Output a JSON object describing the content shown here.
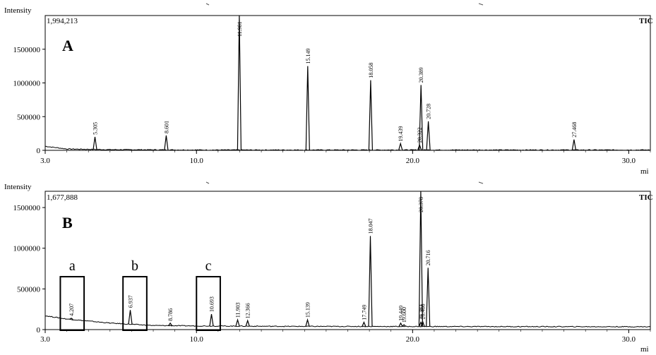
{
  "chart_data": [
    {
      "type": "line",
      "panel_label": "A",
      "ylabel": "Intensity",
      "max_intensity": "1,994,213",
      "trace_label": "TIC",
      "xlabel": "mi",
      "xlim": [
        3.0,
        31.0
      ],
      "ylim": [
        0,
        2000000
      ],
      "x_ticks": [
        "3.0",
        "10.0",
        "20.0",
        "30.0"
      ],
      "x_tick_values": [
        3.0,
        10.0,
        20.0,
        30.0
      ],
      "y_ticks": [
        "0",
        "500000",
        "1000000",
        "1500000"
      ],
      "y_tick_values": [
        0,
        500000,
        1000000,
        1500000
      ],
      "peaks": [
        {
          "label": "5.305",
          "x": 5.305,
          "y": 200000
        },
        {
          "label": "8.601",
          "x": 8.601,
          "y": 220000
        },
        {
          "label": "11.981",
          "x": 11.981,
          "y": 2000000
        },
        {
          "label": "15.149",
          "x": 15.149,
          "y": 1250000
        },
        {
          "label": "18.058",
          "x": 18.058,
          "y": 1040000
        },
        {
          "label": "19.439",
          "x": 19.439,
          "y": 100000
        },
        {
          "label": "20.322",
          "x": 20.322,
          "y": 80000
        },
        {
          "label": "20.389",
          "x": 20.389,
          "y": 970000
        },
        {
          "label": "20.728",
          "x": 20.728,
          "y": 430000
        },
        {
          "label": "27.468",
          "x": 27.468,
          "y": 160000
        }
      ],
      "baseline": [
        [
          3.0,
          60000
        ],
        [
          4.0,
          20000
        ],
        [
          6.0,
          10000
        ],
        [
          10.0,
          5000
        ],
        [
          31.0,
          5000
        ]
      ]
    },
    {
      "type": "line",
      "panel_label": "B",
      "ylabel": "Intensity",
      "max_intensity": "1,677,888",
      "trace_label": "TIC",
      "xlabel": "mi",
      "xlim": [
        3.0,
        31.0
      ],
      "ylim": [
        0,
        1700000
      ],
      "x_ticks": [
        "3.0",
        "10.0",
        "20.0",
        "30.0"
      ],
      "x_tick_values": [
        3.0,
        10.0,
        20.0,
        30.0
      ],
      "y_ticks": [
        "0",
        "500000",
        "1000000",
        "1500000"
      ],
      "y_tick_values": [
        0,
        500000,
        1000000,
        1500000
      ],
      "peaks": [
        {
          "label": "4.207",
          "x": 4.207,
          "y": 140000
        },
        {
          "label": "6.937",
          "x": 6.937,
          "y": 240000
        },
        {
          "label": "8.786",
          "x": 8.786,
          "y": 80000
        },
        {
          "label": "10.693",
          "x": 10.693,
          "y": 190000
        },
        {
          "label": "11.903",
          "x": 11.903,
          "y": 120000
        },
        {
          "label": "12.366",
          "x": 12.366,
          "y": 110000
        },
        {
          "label": "15.139",
          "x": 15.139,
          "y": 120000
        },
        {
          "label": "17.749",
          "x": 17.749,
          "y": 90000
        },
        {
          "label": "18.047",
          "x": 18.047,
          "y": 1150000
        },
        {
          "label": "19.449",
          "x": 19.449,
          "y": 80000
        },
        {
          "label": "19.600",
          "x": 19.6,
          "y": 60000
        },
        {
          "label": "20.383",
          "x": 20.383,
          "y": 90000
        },
        {
          "label": "20.378",
          "x": 20.378,
          "y": 1700000
        },
        {
          "label": "20.468",
          "x": 20.468,
          "y": 100000
        },
        {
          "label": "20.716",
          "x": 20.716,
          "y": 760000
        }
      ],
      "baseline": [
        [
          3.0,
          170000
        ],
        [
          4.0,
          130000
        ],
        [
          6.0,
          80000
        ],
        [
          8.0,
          50000
        ],
        [
          10.0,
          45000
        ],
        [
          14.0,
          40000
        ],
        [
          31.0,
          35000
        ]
      ],
      "regions": [
        {
          "label": "a",
          "x0": 3.7,
          "x1": 4.8,
          "y_top": 650000
        },
        {
          "label": "b",
          "x0": 6.6,
          "x1": 7.7,
          "y_top": 650000
        },
        {
          "label": "c",
          "x0": 10.0,
          "x1": 11.1,
          "y_top": 650000
        }
      ]
    }
  ]
}
